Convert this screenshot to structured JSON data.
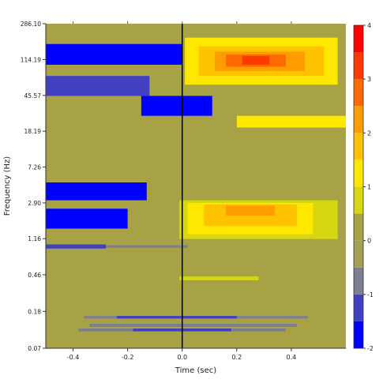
{
  "chart_data": {
    "type": "heatmap",
    "title": "",
    "xlabel": "Time (sec)",
    "ylabel": "Frequency (Hz)",
    "xlim": [
      -0.5,
      0.6
    ],
    "y_scale": "log",
    "ylim": [
      0.07,
      286.1
    ],
    "x_ticks": [
      -0.4,
      -0.2,
      0.0,
      0.2,
      0.4
    ],
    "x_tick_labels": [
      "-0.4",
      "-0.2",
      "0.0",
      "0.2",
      "0.4"
    ],
    "y_ticks": [
      0.07,
      0.18,
      0.46,
      1.16,
      2.9,
      7.26,
      18.19,
      45.57,
      114.19,
      286.1
    ],
    "y_tick_labels": [
      "0.07",
      "0.18",
      "0.46",
      "1.16",
      "2.90",
      "7.26",
      "18.19",
      "45.57",
      "114.19",
      "286.10"
    ],
    "background_value": 0.0,
    "event_line_x": 0.0,
    "colorbar": {
      "min": -2,
      "max": 4,
      "ticks": [
        -2,
        -1,
        0,
        1,
        2,
        3,
        4
      ],
      "tick_labels": [
        "-2",
        "-1",
        "0",
        "1",
        "2",
        "3",
        "4"
      ],
      "bins": [
        {
          "from": -2.0,
          "to": -1.5,
          "color": "#0000ff"
        },
        {
          "from": -1.5,
          "to": -1.0,
          "color": "#4040c0"
        },
        {
          "from": -1.0,
          "to": -0.5,
          "color": "#7d7d93"
        },
        {
          "from": -0.5,
          "to": 0.0,
          "color": "#a3a055"
        },
        {
          "from": 0.0,
          "to": 0.5,
          "color": "#a6a245"
        },
        {
          "from": 0.5,
          "to": 1.0,
          "color": "#d6d612"
        },
        {
          "from": 1.0,
          "to": 1.5,
          "color": "#ffe800"
        },
        {
          "from": 1.5,
          "to": 2.0,
          "color": "#ffc200"
        },
        {
          "from": 2.0,
          "to": 2.5,
          "color": "#ff9c00"
        },
        {
          "from": 2.5,
          "to": 3.0,
          "color": "#ff6a00"
        },
        {
          "from": 3.0,
          "to": 3.5,
          "color": "#ff3800"
        },
        {
          "from": 3.5,
          "to": 4.0,
          "color": "#ff0000"
        }
      ]
    },
    "regions": [
      {
        "x": [
          0.01,
          0.57
        ],
        "y": [
          60,
          200
        ],
        "value": 1.2
      },
      {
        "x": [
          0.06,
          0.52
        ],
        "y": [
          75,
          160
        ],
        "value": 1.8
      },
      {
        "x": [
          0.12,
          0.45
        ],
        "y": [
          85,
          140
        ],
        "value": 2.3
      },
      {
        "x": [
          0.16,
          0.38
        ],
        "y": [
          95,
          130
        ],
        "value": 2.8
      },
      {
        "x": [
          0.22,
          0.32
        ],
        "y": [
          100,
          125
        ],
        "value": 3.3
      },
      {
        "x": [
          0.2,
          0.6
        ],
        "y": [
          20,
          27
        ],
        "value": 1.2
      },
      {
        "x": [
          -0.01,
          0.57
        ],
        "y": [
          1.15,
          3.1
        ],
        "value": 0.8
      },
      {
        "x": [
          0.02,
          0.48
        ],
        "y": [
          1.3,
          2.9
        ],
        "value": 1.2
      },
      {
        "x": [
          0.08,
          0.42
        ],
        "y": [
          1.6,
          2.8
        ],
        "value": 1.6
      },
      {
        "x": [
          0.16,
          0.34
        ],
        "y": [
          2.1,
          2.7
        ],
        "value": 2.0
      },
      {
        "x": [
          -0.01,
          0.28
        ],
        "y": [
          0.4,
          0.44
        ],
        "value": 0.8
      },
      {
        "x": [
          -0.5,
          0.0
        ],
        "y": [
          100,
          170
        ],
        "value": -1.6
      },
      {
        "x": [
          -0.5,
          -0.12
        ],
        "y": [
          45,
          75
        ],
        "value": -1.4
      },
      {
        "x": [
          -0.15,
          0.11
        ],
        "y": [
          27,
          45
        ],
        "value": -1.7
      },
      {
        "x": [
          -0.5,
          -0.13
        ],
        "y": [
          3.1,
          4.9
        ],
        "value": -1.7
      },
      {
        "x": [
          -0.5,
          -0.27
        ],
        "y": [
          3.3,
          3.8
        ],
        "value": -2.0
      },
      {
        "x": [
          -0.5,
          -0.2
        ],
        "y": [
          1.5,
          2.5
        ],
        "value": -1.6
      },
      {
        "x": [
          -0.5,
          -0.36
        ],
        "y": [
          1.8,
          2.2
        ],
        "value": -2.0
      },
      {
        "x": [
          -0.5,
          -0.28
        ],
        "y": [
          0.9,
          1.0
        ],
        "value": -1.4
      },
      {
        "x": [
          -0.28,
          0.02
        ],
        "y": [
          0.92,
          0.98
        ],
        "value": -0.8
      },
      {
        "x": [
          -0.36,
          0.46
        ],
        "y": [
          0.15,
          0.16
        ],
        "value": -0.8
      },
      {
        "x": [
          -0.24,
          0.2
        ],
        "y": [
          0.15,
          0.16
        ],
        "value": -1.3
      },
      {
        "x": [
          -0.34,
          0.42
        ],
        "y": [
          0.121,
          0.131
        ],
        "value": -0.8
      },
      {
        "x": [
          -0.38,
          0.38
        ],
        "y": [
          0.108,
          0.116
        ],
        "value": -0.8
      },
      {
        "x": [
          -0.18,
          0.18
        ],
        "y": [
          0.108,
          0.116
        ],
        "value": -1.3
      }
    ]
  }
}
